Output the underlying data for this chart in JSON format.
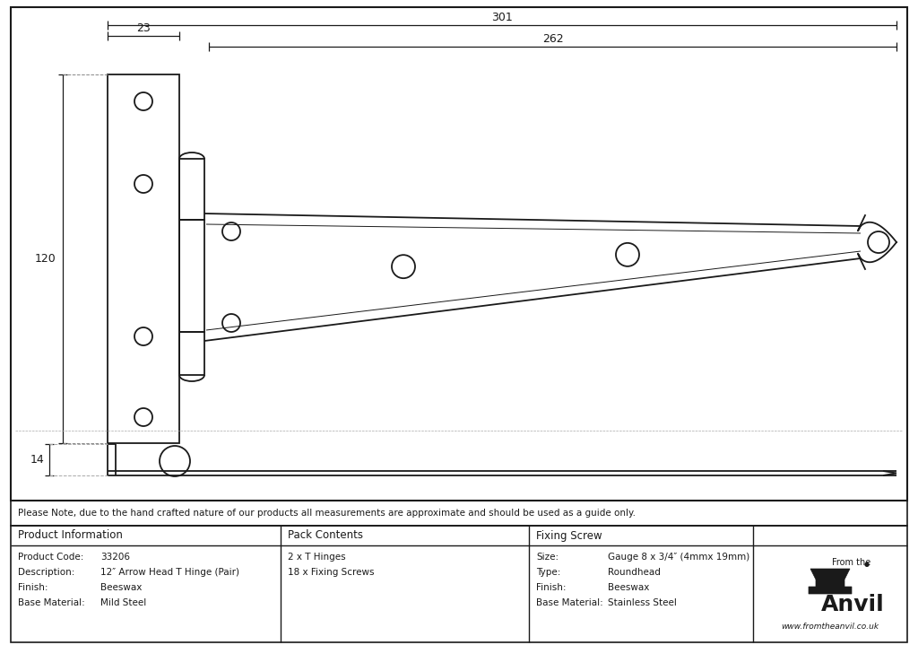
{
  "bg_color": "#ffffff",
  "line_color": "#1a1a1a",
  "note_text": "Please Note, due to the hand crafted nature of our products all measurements are approximate and should be used as a guide only.",
  "product_info": {
    "header": "Product Information",
    "rows": [
      [
        "Product Code:",
        "33206"
      ],
      [
        "Description:",
        "12″ Arrow Head T Hinge (Pair)"
      ],
      [
        "Finish:",
        "Beeswax"
      ],
      [
        "Base Material:",
        "Mild Steel"
      ]
    ]
  },
  "pack_contents": {
    "header": "Pack Contents",
    "rows": [
      [
        "2 x T Hinges"
      ],
      [
        "18 x Fixing Screws"
      ]
    ]
  },
  "fixing_screw": {
    "header": "Fixing Screw",
    "rows": [
      [
        "Size:",
        "Gauge 8 x 3/4″ (4mmx 19mm)"
      ],
      [
        "Type:",
        "Roundhead"
      ],
      [
        "Finish:",
        "Beeswax"
      ],
      [
        "Base Material:",
        "Stainless Steel"
      ]
    ]
  },
  "dim_301": "301",
  "dim_262": "262",
  "dim_23": "23",
  "dim_120": "120",
  "dim_14": "14"
}
